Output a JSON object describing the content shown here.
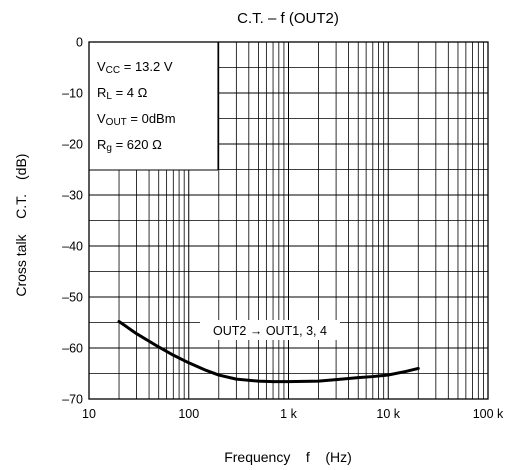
{
  "chart_data": {
    "type": "line",
    "title": "C.T. – f (OUT2)",
    "xlabel": "Frequency    f    (Hz)",
    "ylabel_left": "Cross talk    C.T.",
    "ylabel_unit": "(dB)",
    "x_scale": "log",
    "xlim": [
      10,
      100000
    ],
    "ylim": [
      -70,
      0
    ],
    "x_ticks": [
      {
        "value": 10,
        "label": "10"
      },
      {
        "value": 100,
        "label": "100"
      },
      {
        "value": 1000,
        "label": "1 k"
      },
      {
        "value": 10000,
        "label": "10 k"
      },
      {
        "value": 100000,
        "label": "100 k"
      }
    ],
    "y_ticks": [
      {
        "value": 0,
        "label": "0"
      },
      {
        "value": -10,
        "label": "–10"
      },
      {
        "value": -20,
        "label": "–20"
      },
      {
        "value": -30,
        "label": "–30"
      },
      {
        "value": -40,
        "label": "–40"
      },
      {
        "value": -50,
        "label": "–50"
      },
      {
        "value": -60,
        "label": "–60"
      },
      {
        "value": -70,
        "label": "–70"
      }
    ],
    "grid": true,
    "conditions": {
      "vcc": {
        "main": "V",
        "sub": "CC",
        "rest": " = 13.2 V"
      },
      "rl": {
        "main": "R",
        "sub": "L",
        "rest": " = 4 Ω"
      },
      "vout": {
        "main": "V",
        "sub": "OUT",
        "rest": " = 0dBm"
      },
      "rg": {
        "main": "R",
        "sub": "g",
        "rest": " = 620 Ω"
      }
    },
    "series": [
      {
        "name": "OUT2 → OUT1, 3, 4",
        "x": [
          20,
          30,
          50,
          70,
          100,
          150,
          200,
          300,
          500,
          700,
          1000,
          2000,
          3000,
          5000,
          7000,
          10000,
          15000,
          20000
        ],
        "y": [
          -54.8,
          -57.2,
          -59.8,
          -61.4,
          -62.9,
          -64.4,
          -65.3,
          -66.1,
          -66.5,
          -66.6,
          -66.6,
          -66.5,
          -66.2,
          -65.8,
          -65.6,
          -65.3,
          -64.6,
          -64.0
        ]
      }
    ]
  }
}
